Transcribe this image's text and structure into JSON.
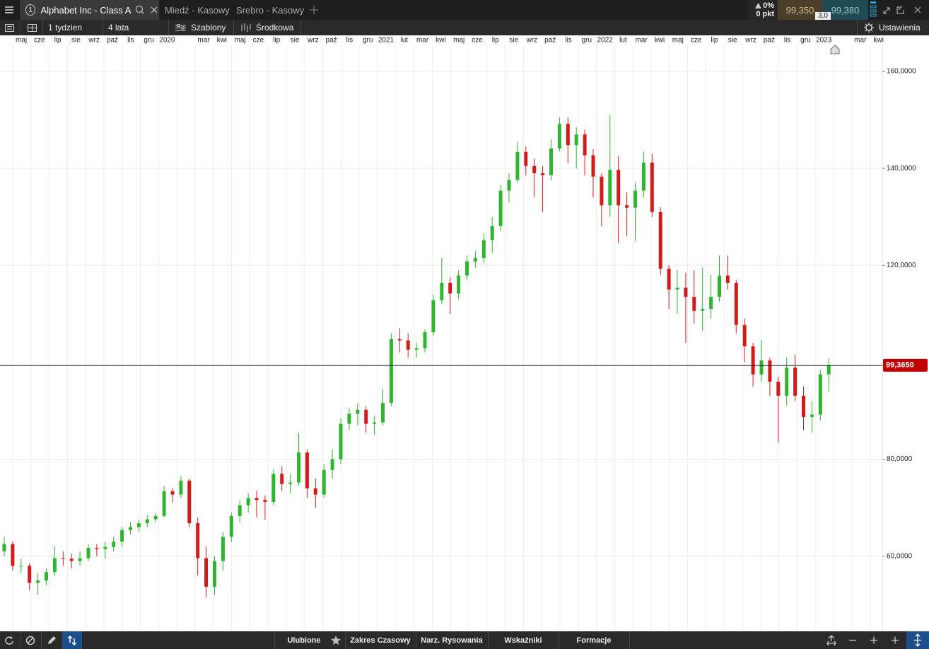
{
  "tabs": {
    "active": {
      "number": "1",
      "label": "Alphabet Inc - Class A"
    },
    "others": [
      "Miedź - Kasowy",
      "Srebro - Kasowy"
    ]
  },
  "quote": {
    "change": "0%",
    "points": "0 pkt",
    "sell": "99,350",
    "buy": "99,380",
    "spread": "3,0"
  },
  "toolbar": {
    "interval": "1 tydzien",
    "range": "4 lata",
    "templates": "Szablony",
    "mode": "Środkowa",
    "settings": "Ustawienia"
  },
  "bottom_bar": [
    "Ulubione",
    "Zakres Czasowy",
    "Narz. Rysowania",
    "Wskaźniki",
    "Formacje"
  ],
  "chart_data": {
    "type": "candlestick",
    "categories": [
      "maj",
      "cze",
      "lip",
      "sie",
      "wrz",
      "paź",
      "lis",
      "gru",
      "2020",
      null,
      "mar",
      "kwi",
      "maj",
      "cze",
      "lip",
      "sie",
      "wrz",
      "paź",
      "lis",
      "gru",
      "2021",
      "lut",
      "mar",
      "kwi",
      "maj",
      "cze",
      "lip",
      "sie",
      "wrz",
      "paź",
      "lis",
      "gru",
      "2022",
      "lut",
      "mar",
      "kwi",
      "maj",
      "cze",
      "lip",
      "sie",
      "wrz",
      "paź",
      "lis",
      "gru",
      "2023",
      null,
      "mar",
      "kwi"
    ],
    "candles": [
      [
        61,
        64,
        60,
        62.5
      ],
      [
        62.5,
        63,
        57,
        58
      ],
      [
        58,
        59.5,
        56.5,
        58
      ],
      [
        58,
        58.5,
        53,
        54.5
      ],
      [
        54.5,
        56.5,
        52,
        55
      ],
      [
        55,
        57.5,
        54,
        56.7
      ],
      [
        56.7,
        62,
        56,
        59.6
      ],
      [
        59.6,
        61,
        58,
        59.5
      ],
      [
        59.5,
        60.5,
        57.5,
        59
      ],
      [
        59,
        61,
        58,
        59.6
      ],
      [
        59.6,
        62.5,
        59,
        61.7
      ],
      [
        61.7,
        62.5,
        60,
        61.5
      ],
      [
        61.5,
        63,
        59.5,
        61.9
      ],
      [
        61.9,
        64,
        61,
        63
      ],
      [
        63,
        66,
        62,
        65.4
      ],
      [
        65.4,
        67,
        64.5,
        66
      ],
      [
        66,
        67.5,
        65,
        66.8
      ],
      [
        66.8,
        68.5,
        66,
        67.6
      ],
      [
        67.6,
        69,
        67,
        68.3
      ],
      [
        68.3,
        74.5,
        68,
        73.4
      ],
      [
        73.4,
        74,
        71,
        72.7
      ],
      [
        72.7,
        76.5,
        72,
        75.6
      ],
      [
        75.6,
        76,
        66,
        66.8
      ],
      [
        66.8,
        68,
        56,
        59.6
      ],
      [
        59.6,
        62,
        51.5,
        53.7
      ],
      [
        53.7,
        60,
        52,
        59
      ],
      [
        59,
        65,
        57,
        64
      ],
      [
        64,
        69,
        63,
        68.3
      ],
      [
        68.3,
        71.5,
        67,
        70.5
      ],
      [
        70.5,
        73,
        69,
        72
      ],
      [
        72,
        73.5,
        68,
        71.6
      ],
      [
        71.6,
        72.5,
        67.5,
        71.2
      ],
      [
        71.2,
        78,
        70.5,
        77
      ],
      [
        77,
        78.5,
        73.5,
        74.9
      ],
      [
        74.9,
        77,
        73,
        75.2
      ],
      [
        75.2,
        85.5,
        74.5,
        81.4
      ],
      [
        81.4,
        82,
        72,
        74
      ],
      [
        74,
        76,
        70,
        72.7
      ],
      [
        72.7,
        79,
        72,
        77.8
      ],
      [
        77.8,
        82,
        76,
        80
      ],
      [
        80,
        88.5,
        79,
        87.3
      ],
      [
        87.3,
        90.5,
        86,
        89.4
      ],
      [
        89.4,
        91.5,
        87,
        90.2
      ],
      [
        90.2,
        91,
        85.5,
        87.3
      ],
      [
        87.3,
        89,
        85,
        87.6
      ],
      [
        87.6,
        94.5,
        87,
        91.6
      ],
      [
        91.6,
        106,
        91,
        104.8
      ],
      [
        104.8,
        107,
        102,
        104.5
      ],
      [
        104.5,
        106,
        101,
        102.6
      ],
      [
        102.6,
        104,
        101,
        102.9
      ],
      [
        102.9,
        106.8,
        102,
        106.2
      ],
      [
        106.2,
        114,
        105.5,
        112.8
      ],
      [
        112.8,
        121.5,
        112,
        116.4
      ],
      [
        116.4,
        117.5,
        110,
        114.2
      ],
      [
        114.2,
        119,
        113,
        117.9
      ],
      [
        117.9,
        122,
        117,
        120.8
      ],
      [
        120.8,
        123,
        119.5,
        121.5
      ],
      [
        121.5,
        126.5,
        120.5,
        125.2
      ],
      [
        125.2,
        130,
        122.5,
        128.1
      ],
      [
        128.1,
        136.5,
        127,
        135.4
      ],
      [
        135.4,
        139,
        133,
        137.6
      ],
      [
        137.6,
        145.5,
        137,
        143.4
      ],
      [
        143.4,
        144.5,
        138.5,
        140.5
      ],
      [
        140.5,
        142,
        134,
        139
      ],
      [
        139,
        140.5,
        131,
        138.6
      ],
      [
        138.6,
        146,
        137.5,
        144.1
      ],
      [
        144.1,
        150.5,
        143.5,
        149.2
      ],
      [
        149.2,
        150.5,
        141,
        144.8
      ],
      [
        144.8,
        148.5,
        140,
        147
      ],
      [
        147,
        148,
        138.5,
        142.7
      ],
      [
        142.7,
        144,
        134,
        138.3
      ],
      [
        138.3,
        139,
        128,
        132.4
      ],
      [
        132.4,
        151,
        130,
        139.7
      ],
      [
        139.7,
        142.5,
        124.5,
        132.4
      ],
      [
        132.4,
        135,
        126,
        131.9
      ],
      [
        131.9,
        137,
        125,
        135.4
      ],
      [
        135.4,
        143.5,
        134,
        141.2
      ],
      [
        141.2,
        143,
        130,
        131
      ],
      [
        131,
        132,
        118,
        119.3
      ],
      [
        119.3,
        120,
        111,
        115
      ],
      [
        115,
        119,
        110,
        115.4
      ],
      [
        115.4,
        118.5,
        104,
        113.5
      ],
      [
        113.5,
        119,
        108,
        110.6
      ],
      [
        110.6,
        119.5,
        106.5,
        111
      ],
      [
        111,
        118,
        109,
        113.5
      ],
      [
        113.5,
        122,
        112.5,
        117.9
      ],
      [
        117.9,
        122,
        115,
        116.4
      ],
      [
        116.4,
        117,
        106,
        107.7
      ],
      [
        107.7,
        109,
        100,
        103.3
      ],
      [
        103.3,
        104,
        95,
        97.5
      ],
      [
        97.5,
        104.5,
        96,
        100.4
      ],
      [
        100.4,
        101,
        93,
        96
      ],
      [
        96,
        97,
        83.5,
        93.1
      ],
      [
        93.1,
        101,
        91,
        98.9
      ],
      [
        98.9,
        101.5,
        92,
        93.1
      ],
      [
        93.1,
        95,
        86,
        88.7
      ],
      [
        88.7,
        92,
        85.5,
        89.2
      ],
      [
        89.2,
        98.5,
        88,
        97.5
      ],
      [
        97.5,
        100.8,
        94,
        99.4
      ]
    ],
    "colors": {
      "up": "#2fb52f",
      "down": "#d21c1c"
    },
    "ylim": [
      44.5,
      165.4
    ],
    "yticks": [
      {
        "value": 60,
        "label": "60,0000"
      },
      {
        "value": 80,
        "label": "80,0000"
      },
      {
        "value": 120,
        "label": "120,0000"
      },
      {
        "value": 140,
        "label": "140,0000"
      },
      {
        "value": 160,
        "label": "160,0000"
      }
    ],
    "grid": true,
    "last_price": {
      "value": 99.365,
      "label": "99,3650"
    }
  }
}
